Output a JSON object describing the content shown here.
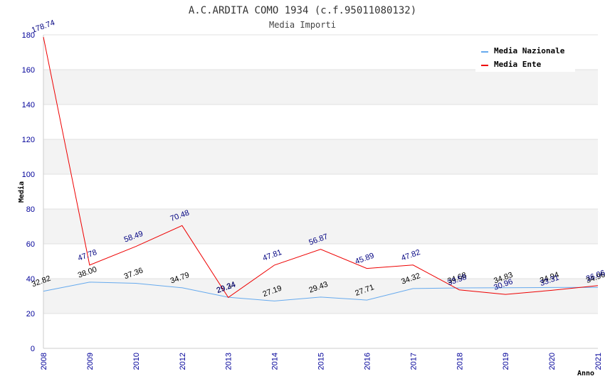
{
  "chart_data": {
    "type": "line",
    "title": "A.C.ARDITA COMO 1934 (c.f.95011080132)",
    "subtitle": "Media Importi",
    "xlabel": "Anno",
    "ylabel": "Media",
    "ylim": [
      0,
      180
    ],
    "yticks": [
      "0",
      "20",
      "40",
      "60",
      "80",
      "100",
      "120",
      "140",
      "160",
      "180"
    ],
    "grid": true,
    "legend_position": "top-right",
    "categories": [
      "2008",
      "2009",
      "2010",
      "2012",
      "2013",
      "2014",
      "2015",
      "2016",
      "2017",
      "2018",
      "2019",
      "2020",
      "2021"
    ],
    "series": [
      {
        "name": "Media Nazionale",
        "color": "#66aaee",
        "label_color": "#000000",
        "values": [
          32.82,
          38.0,
          37.36,
          34.79,
          29.34,
          27.19,
          29.43,
          27.71,
          34.32,
          34.68,
          34.83,
          34.94,
          34.96
        ],
        "labels": [
          "32.82",
          "38.00",
          "37.36",
          "34.79",
          "29.34",
          "27.19",
          "29.43",
          "27.71",
          "34.32",
          "34.68",
          "34.83",
          "34.94",
          "34.96"
        ]
      },
      {
        "name": "Media Ente",
        "color": "#ee0000",
        "label_color": "#000080",
        "values": [
          178.74,
          47.78,
          58.49,
          70.48,
          29.24,
          47.81,
          56.87,
          45.89,
          47.82,
          33.58,
          30.96,
          33.31,
          36.06
        ],
        "labels": [
          "178.74",
          "47.78",
          "58.49",
          "70.48",
          "29.24",
          "47.81",
          "56.87",
          "45.89",
          "47.82",
          "33.58",
          "30.96",
          "33.31",
          "36.06"
        ]
      }
    ]
  }
}
